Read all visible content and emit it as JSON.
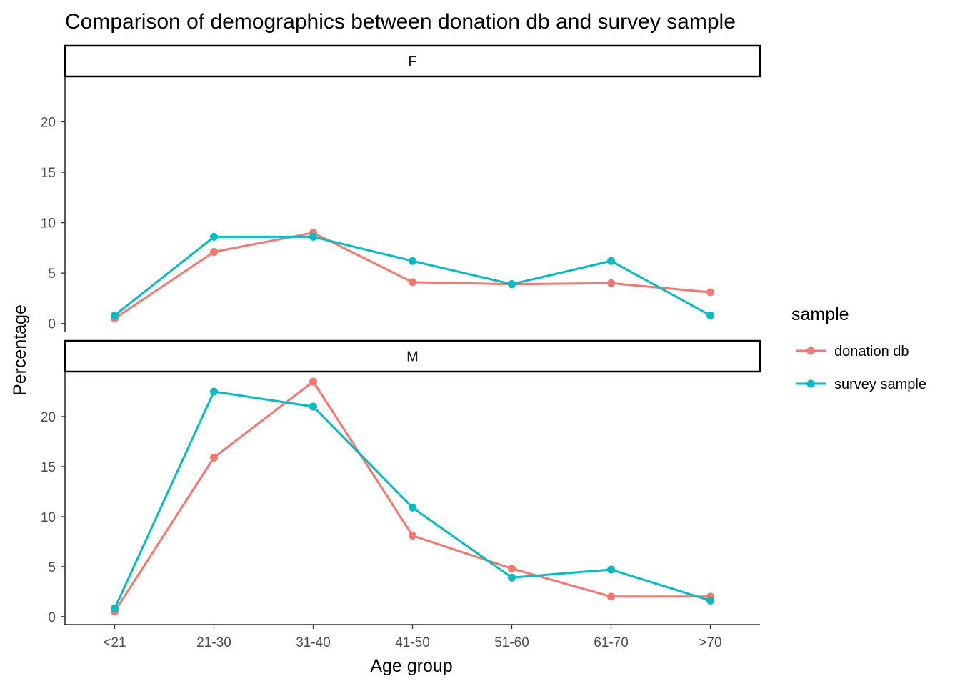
{
  "chart_data": {
    "type": "line",
    "title": "Comparison of demographics between donation db and survey sample",
    "xlabel": "Age group",
    "ylabel": "Percentage",
    "categories": [
      "<21",
      "21-30",
      "31-40",
      "41-50",
      "51-60",
      "61-70",
      ">70"
    ],
    "ylim": [
      -0.8,
      24.5
    ],
    "yticks": [
      0,
      5,
      10,
      15,
      20
    ],
    "grid": false,
    "legend": {
      "title": "sample",
      "position": "right",
      "entries": [
        "donation db",
        "survey sample"
      ]
    },
    "colors": {
      "donation db": "#F8766D",
      "survey sample": "#00BFC4"
    },
    "facets": [
      {
        "label": "F",
        "series": [
          {
            "name": "donation db",
            "values": [
              0.5,
              7.1,
              9.0,
              4.1,
              3.9,
              4.0,
              3.1
            ]
          },
          {
            "name": "survey sample",
            "values": [
              0.8,
              8.6,
              8.6,
              6.2,
              3.9,
              6.2,
              0.8
            ]
          }
        ]
      },
      {
        "label": "M",
        "series": [
          {
            "name": "donation db",
            "values": [
              0.5,
              15.9,
              23.5,
              8.1,
              4.8,
              2.0,
              2.0
            ]
          },
          {
            "name": "survey sample",
            "values": [
              0.8,
              22.5,
              21.0,
              10.9,
              3.9,
              4.7,
              1.6
            ]
          }
        ]
      }
    ]
  }
}
